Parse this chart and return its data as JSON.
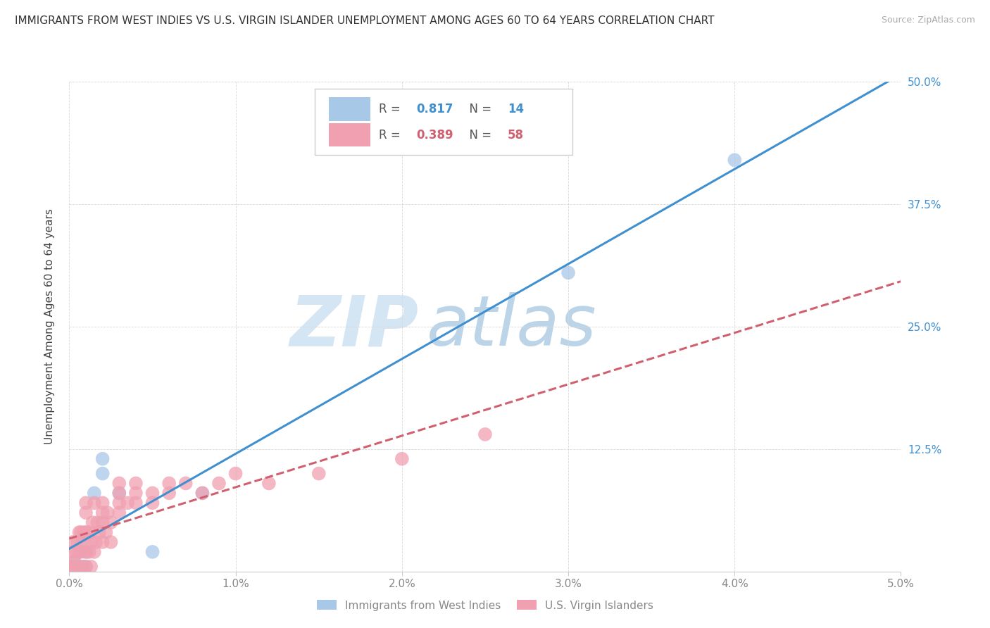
{
  "title": "IMMIGRANTS FROM WEST INDIES VS U.S. VIRGIN ISLANDER UNEMPLOYMENT AMONG AGES 60 TO 64 YEARS CORRELATION CHART",
  "source": "Source: ZipAtlas.com",
  "ylabel": "Unemployment Among Ages 60 to 64 years",
  "xlim": [
    0.0,
    0.05
  ],
  "ylim": [
    0.0,
    0.5
  ],
  "xticks": [
    0.0,
    0.01,
    0.02,
    0.03,
    0.04,
    0.05
  ],
  "xtick_labels": [
    "0.0%",
    "1.0%",
    "2.0%",
    "3.0%",
    "4.0%",
    "5.0%"
  ],
  "yticks": [
    0.0,
    0.125,
    0.25,
    0.375,
    0.5
  ],
  "ytick_labels_right": [
    "",
    "12.5%",
    "25.0%",
    "37.5%",
    "50.0%"
  ],
  "watermark_zip": "ZIP",
  "watermark_atlas": "atlas",
  "series": [
    {
      "name": "Immigrants from West Indies",
      "R": 0.817,
      "N": 14,
      "color": "#a8c8e8",
      "line_color": "#4090d0",
      "line_style": "solid",
      "x": [
        0.0003,
        0.0003,
        0.0005,
        0.0008,
        0.001,
        0.001,
        0.0015,
        0.002,
        0.002,
        0.003,
        0.005,
        0.008,
        0.03,
        0.04
      ],
      "y": [
        0.005,
        0.01,
        0.005,
        0.005,
        0.005,
        0.02,
        0.08,
        0.1,
        0.115,
        0.08,
        0.02,
        0.08,
        0.305,
        0.42
      ]
    },
    {
      "name": "U.S. Virgin Islanders",
      "R": 0.389,
      "N": 58,
      "color": "#f0a0b0",
      "line_color": "#d06070",
      "line_style": "dashed",
      "x": [
        0.0001,
        0.0002,
        0.0002,
        0.0003,
        0.0003,
        0.0004,
        0.0005,
        0.0005,
        0.0006,
        0.0006,
        0.0007,
        0.0007,
        0.0008,
        0.0008,
        0.0009,
        0.001,
        0.001,
        0.001,
        0.001,
        0.001,
        0.0012,
        0.0012,
        0.0013,
        0.0013,
        0.0014,
        0.0015,
        0.0015,
        0.0016,
        0.0017,
        0.0018,
        0.002,
        0.002,
        0.002,
        0.002,
        0.0022,
        0.0023,
        0.0025,
        0.0025,
        0.003,
        0.003,
        0.003,
        0.003,
        0.0035,
        0.004,
        0.004,
        0.004,
        0.005,
        0.005,
        0.006,
        0.006,
        0.007,
        0.008,
        0.009,
        0.01,
        0.012,
        0.015,
        0.02,
        0.025
      ],
      "y": [
        0.005,
        0.02,
        0.03,
        0.005,
        0.01,
        0.02,
        0.005,
        0.03,
        0.02,
        0.04,
        0.02,
        0.04,
        0.005,
        0.03,
        0.04,
        0.005,
        0.02,
        0.04,
        0.06,
        0.07,
        0.02,
        0.04,
        0.005,
        0.03,
        0.05,
        0.02,
        0.07,
        0.03,
        0.05,
        0.04,
        0.03,
        0.05,
        0.06,
        0.07,
        0.04,
        0.06,
        0.03,
        0.05,
        0.06,
        0.07,
        0.08,
        0.09,
        0.07,
        0.08,
        0.07,
        0.09,
        0.07,
        0.08,
        0.09,
        0.08,
        0.09,
        0.08,
        0.09,
        0.1,
        0.09,
        0.1,
        0.115,
        0.14
      ]
    }
  ],
  "background_color": "#ffffff",
  "grid_color": "#d8d8d8",
  "title_fontsize": 11,
  "axis_label_fontsize": 11,
  "tick_fontsize": 11,
  "watermark_color_zip": "#b8d4ee",
  "watermark_color_atlas": "#90b8d8",
  "watermark_fontsize": 72
}
